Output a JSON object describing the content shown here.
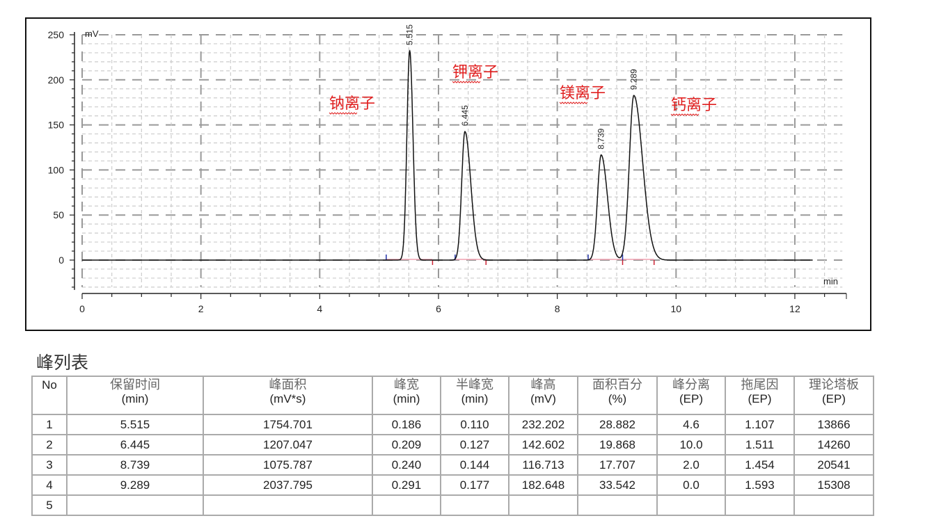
{
  "chart_data": {
    "type": "line",
    "ylabel": "mV",
    "xlabel": "min",
    "xlim": [
      0,
      12.8
    ],
    "ylim": [
      -30,
      255
    ],
    "x_ticks": [
      "0",
      "2",
      "4",
      "6",
      "8",
      "10",
      "12"
    ],
    "y_ticks": [
      "250",
      "200",
      "150",
      "100",
      "50",
      "0"
    ],
    "grid": true,
    "series_color": "#111111",
    "peaks": [
      {
        "rt": 5.515,
        "height": 232.202,
        "half_width": 0.11,
        "tailing": 1.107,
        "label": "5.515",
        "ion": "钠离子"
      },
      {
        "rt": 6.445,
        "height": 142.602,
        "half_width": 0.127,
        "tailing": 1.511,
        "label": "6.445",
        "ion": "钾离子"
      },
      {
        "rt": 8.739,
        "height": 116.713,
        "half_width": 0.144,
        "tailing": 1.454,
        "label": "8.739",
        "ion": "镁离子"
      },
      {
        "rt": 9.289,
        "height": 182.648,
        "half_width": 0.177,
        "tailing": 1.593,
        "label": "9.289",
        "ion": "钙离子"
      }
    ],
    "annotation_color": "#e02020"
  },
  "table": {
    "title": "峰列表",
    "headers": [
      {
        "cn": "No",
        "unit": ""
      },
      {
        "cn": "保留时间",
        "unit": "(min)"
      },
      {
        "cn": "峰面积",
        "unit": "(mV*s)"
      },
      {
        "cn": "峰宽",
        "unit": "(min)"
      },
      {
        "cn": "半峰宽",
        "unit": "(min)"
      },
      {
        "cn": "峰高",
        "unit": "(mV)"
      },
      {
        "cn": "面积百分",
        "unit": "(%)"
      },
      {
        "cn": "峰分离",
        "unit": "(EP)"
      },
      {
        "cn": "拖尾因",
        "unit": "(EP)"
      },
      {
        "cn": "理论塔板",
        "unit": "(EP)"
      }
    ],
    "rows": [
      [
        "1",
        "5.515",
        "1754.701",
        "0.186",
        "0.110",
        "232.202",
        "28.882",
        "4.6",
        "1.107",
        "13866"
      ],
      [
        "2",
        "6.445",
        "1207.047",
        "0.209",
        "0.127",
        "142.602",
        "19.868",
        "10.0",
        "1.511",
        "14260"
      ],
      [
        "3",
        "8.739",
        "1075.787",
        "0.240",
        "0.144",
        "116.713",
        "17.707",
        "2.0",
        "1.454",
        "20541"
      ],
      [
        "4",
        "9.289",
        "2037.795",
        "0.291",
        "0.177",
        "182.648",
        "33.542",
        "0.0",
        "1.593",
        "15308"
      ],
      [
        "5",
        "",
        "",
        "",
        "",
        "",
        "",
        "",
        "",
        ""
      ]
    ]
  }
}
